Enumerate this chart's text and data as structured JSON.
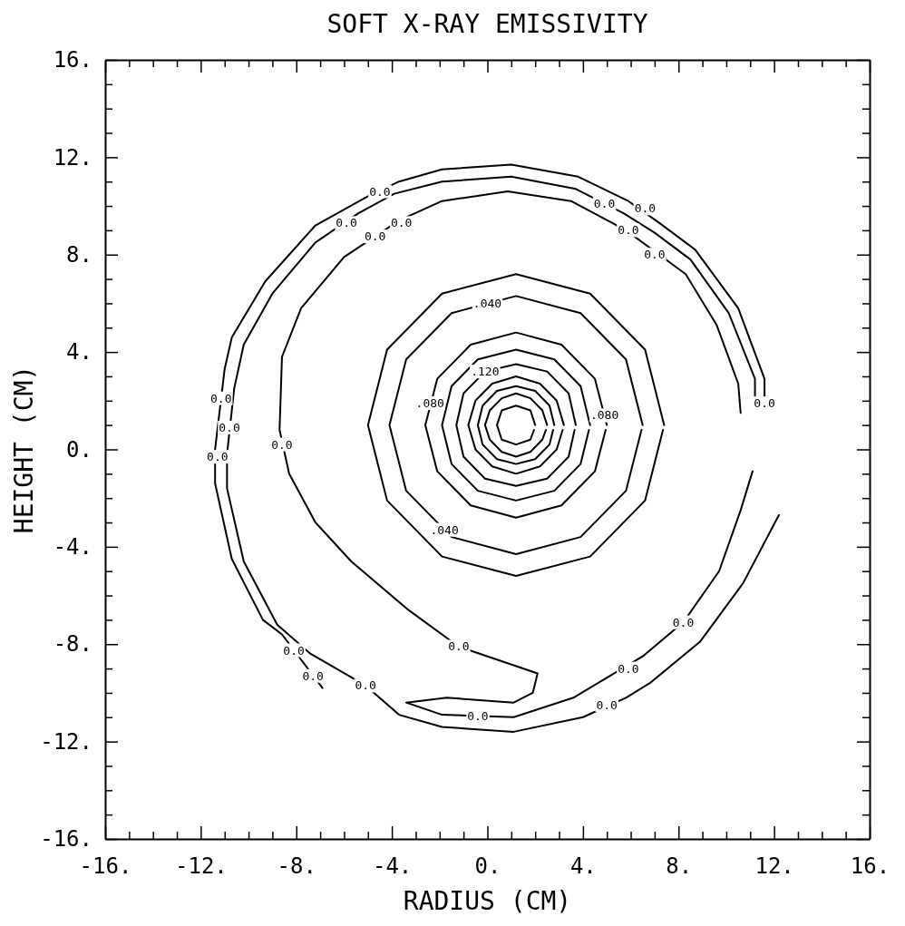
{
  "chart_data": {
    "type": "line",
    "title": "SOFT X-RAY EMISSIVITY",
    "xlabel": "RADIUS (CM)",
    "ylabel": "HEIGHT (CM)",
    "xlim": [
      -16,
      16
    ],
    "ylim": [
      -16,
      16
    ],
    "xticks": [
      {
        "value": -16,
        "label": "-16."
      },
      {
        "value": -15,
        "label": null
      },
      {
        "value": -14,
        "label": null
      },
      {
        "value": -13,
        "label": null
      },
      {
        "value": -12,
        "label": "-12."
      },
      {
        "value": -11,
        "label": null
      },
      {
        "value": -10,
        "label": null
      },
      {
        "value": -9,
        "label": null
      },
      {
        "value": -8,
        "label": "-8."
      },
      {
        "value": -7,
        "label": null
      },
      {
        "value": -6,
        "label": null
      },
      {
        "value": -5,
        "label": null
      },
      {
        "value": -4,
        "label": "-4."
      },
      {
        "value": -3,
        "label": null
      },
      {
        "value": -2,
        "label": null
      },
      {
        "value": -1,
        "label": null
      },
      {
        "value": 0,
        "label": "0."
      },
      {
        "value": 1,
        "label": null
      },
      {
        "value": 2,
        "label": null
      },
      {
        "value": 3,
        "label": null
      },
      {
        "value": 4,
        "label": "4."
      },
      {
        "value": 5,
        "label": null
      },
      {
        "value": 6,
        "label": null
      },
      {
        "value": 7,
        "label": null
      },
      {
        "value": 8,
        "label": "8."
      },
      {
        "value": 9,
        "label": null
      },
      {
        "value": 10,
        "label": null
      },
      {
        "value": 11,
        "label": null
      },
      {
        "value": 12,
        "label": "12."
      },
      {
        "value": 13,
        "label": null
      },
      {
        "value": 14,
        "label": null
      },
      {
        "value": 15,
        "label": null
      },
      {
        "value": 16,
        "label": "16."
      }
    ],
    "yticks": [
      {
        "value": -16,
        "label": "-16."
      },
      {
        "value": -15,
        "label": null
      },
      {
        "value": -14,
        "label": null
      },
      {
        "value": -13,
        "label": null
      },
      {
        "value": -12,
        "label": "-12."
      },
      {
        "value": -11,
        "label": null
      },
      {
        "value": -10,
        "label": null
      },
      {
        "value": -9,
        "label": null
      },
      {
        "value": -8,
        "label": "-8."
      },
      {
        "value": -7,
        "label": null
      },
      {
        "value": -6,
        "label": null
      },
      {
        "value": -5,
        "label": null
      },
      {
        "value": -4,
        "label": "-4."
      },
      {
        "value": -3,
        "label": null
      },
      {
        "value": -2,
        "label": null
      },
      {
        "value": -1,
        "label": null
      },
      {
        "value": 0,
        "label": "0."
      },
      {
        "value": 1,
        "label": null
      },
      {
        "value": 2,
        "label": null
      },
      {
        "value": 3,
        "label": null
      },
      {
        "value": 4,
        "label": "4."
      },
      {
        "value": 5,
        "label": null
      },
      {
        "value": 6,
        "label": null
      },
      {
        "value": 7,
        "label": null
      },
      {
        "value": 8,
        "label": "8."
      },
      {
        "value": 9,
        "label": null
      },
      {
        "value": 10,
        "label": null
      },
      {
        "value": 11,
        "label": null
      },
      {
        "value": 12,
        "label": "12."
      },
      {
        "value": 13,
        "label": null
      },
      {
        "value": 14,
        "label": null
      },
      {
        "value": 15,
        "label": null
      },
      {
        "value": 16,
        "label": "16."
      }
    ],
    "grid": false,
    "series": [
      {
        "color": "#000000",
        "x": [
          -6.9,
          -8.6,
          -9.4,
          -10.7,
          -11.4,
          -11.4,
          -11.0,
          -10.7,
          -9.3,
          -7.2,
          -5.0,
          -3.7,
          -1.9,
          1.0,
          3.8,
          5.9,
          7.2,
          8.7,
          10.5,
          11.6,
          11.6
        ],
        "values": [
          -9.8,
          -7.6,
          -7.0,
          -4.5,
          -1.4,
          0.0,
          3.3,
          4.6,
          6.9,
          9.2,
          10.4,
          11.0,
          11.5,
          11.7,
          11.2,
          10.2,
          9.3,
          8.2,
          5.8,
          2.9,
          1.9
        ]
      },
      {
        "color": "#000000",
        "x": [
          11.2,
          11.2,
          10.1,
          8.5,
          7.0,
          5.7,
          3.7,
          1.0,
          -1.9,
          -3.9,
          -5.4,
          -7.2,
          -9.0,
          -10.2,
          -10.6,
          -10.9,
          -10.9,
          -10.2,
          -8.8,
          -7.4,
          -5.1,
          -3.7,
          -1.9,
          1.1,
          4.0,
          5.8,
          6.8,
          8.9,
          10.7,
          12.2
        ],
        "values": [
          1.7,
          2.9,
          5.6,
          7.8,
          8.9,
          9.7,
          10.7,
          11.2,
          11.0,
          10.5,
          9.7,
          8.5,
          6.4,
          4.3,
          2.5,
          -0.2,
          -1.6,
          -4.6,
          -7.2,
          -8.4,
          -9.7,
          -10.9,
          -11.4,
          -11.6,
          -11.0,
          -10.2,
          -9.6,
          -7.9,
          -5.5,
          -2.7
        ]
      },
      {
        "color": "#000000",
        "x": [
          11.1,
          10.6,
          9.7,
          8.2,
          6.5,
          3.6,
          1.1,
          -1.9,
          -3.4,
          -1.7,
          1.1,
          1.9,
          2.1,
          -0.3,
          -1.2,
          -3.3,
          -5.7,
          -7.2,
          -8.3,
          -8.7,
          -8.6,
          -7.8,
          -6.0,
          -3.7,
          -1.9,
          0.85,
          3.5,
          5.8,
          8.3,
          9.6,
          10.5,
          10.6
        ],
        "values": [
          -0.9,
          -2.5,
          -5.0,
          -7.1,
          -8.5,
          -10.2,
          -11.0,
          -10.9,
          -10.4,
          -10.2,
          -10.4,
          -10.0,
          -9.2,
          -8.4,
          -8.1,
          -6.6,
          -4.6,
          -3.0,
          -1.0,
          0.8,
          3.8,
          5.8,
          7.9,
          9.4,
          10.2,
          10.6,
          10.2,
          9.0,
          7.2,
          5.1,
          2.7,
          1.5
        ]
      },
      {
        "color": "#000000",
        "x": [
          7.4,
          6.6,
          4.3,
          1.2,
          -1.9,
          -4.2,
          -5.0,
          -4.2,
          -1.9,
          1.2,
          4.3,
          6.6,
          7.35
        ],
        "values": [
          1.0,
          4.1,
          6.4,
          7.2,
          6.4,
          4.1,
          1.0,
          -2.1,
          -4.4,
          -5.2,
          -4.4,
          -2.1,
          0.8
        ]
      },
      {
        "color": "#000000",
        "x": [
          6.5,
          5.8,
          3.9,
          1.2,
          -1.5,
          -3.4,
          -4.1,
          -3.4,
          -1.5,
          1.2,
          3.9,
          5.8,
          6.45
        ],
        "values": [
          1.0,
          3.7,
          5.6,
          6.3,
          5.6,
          3.7,
          1.0,
          -1.7,
          -3.6,
          -4.3,
          -3.6,
          -1.7,
          0.8
        ]
      },
      {
        "color": "#000000",
        "x": [
          5.0,
          4.5,
          3.1,
          1.2,
          -0.7,
          -2.1,
          -2.6,
          -2.1,
          -0.7,
          1.2,
          3.1,
          4.5,
          4.95
        ],
        "values": [
          1.0,
          2.9,
          4.3,
          4.8,
          4.3,
          2.9,
          1.0,
          -0.9,
          -2.3,
          -2.8,
          -2.3,
          -0.9,
          0.8
        ]
      },
      {
        "color": "#000000",
        "x": [
          4.3,
          3.9,
          2.8,
          1.2,
          -0.4,
          -1.5,
          -1.9,
          -1.5,
          -0.4,
          1.2,
          2.8,
          3.9,
          4.25
        ],
        "values": [
          1.0,
          2.6,
          3.7,
          4.1,
          3.7,
          2.6,
          1.0,
          -0.6,
          -1.7,
          -2.1,
          -1.7,
          -0.6,
          0.8
        ]
      },
      {
        "color": "#000000",
        "x": [
          3.7,
          3.4,
          2.5,
          1.2,
          -0.1,
          -1.0,
          -1.3,
          -1.0,
          -0.1,
          1.2,
          2.5,
          3.4,
          3.65
        ],
        "values": [
          1.0,
          2.3,
          3.2,
          3.5,
          3.2,
          2.3,
          1.0,
          -0.3,
          -1.2,
          -1.5,
          -1.2,
          -0.3,
          0.8
        ]
      },
      {
        "color": "#000000",
        "x": [
          3.2,
          2.9,
          2.2,
          1.2,
          0.2,
          -0.5,
          -0.8,
          -0.5,
          0.2,
          1.2,
          2.2,
          2.9,
          3.15
        ],
        "values": [
          1.0,
          2.0,
          2.7,
          3.0,
          2.7,
          2.0,
          1.0,
          0.0,
          -0.7,
          -1.0,
          -0.7,
          0.0,
          0.8
        ]
      },
      {
        "color": "#000000",
        "x": [
          2.8,
          2.6,
          2.0,
          1.2,
          0.4,
          -0.2,
          -0.4,
          -0.2,
          0.4,
          1.2,
          2.0,
          2.6,
          2.75
        ],
        "values": [
          1.0,
          1.8,
          2.4,
          2.6,
          2.4,
          1.8,
          1.0,
          0.2,
          -0.4,
          -0.6,
          -0.4,
          0.2,
          0.8
        ]
      },
      {
        "color": "#000000",
        "x": [
          2.5,
          2.3,
          1.8,
          1.2,
          0.6,
          0.1,
          -0.1,
          0.1,
          0.6,
          1.2,
          1.8,
          2.3,
          2.45
        ],
        "values": [
          1.0,
          1.6,
          2.1,
          2.3,
          2.1,
          1.6,
          1.0,
          0.4,
          -0.1,
          -0.3,
          -0.1,
          0.4,
          0.8
        ]
      },
      {
        "color": "#000000",
        "x": [
          2.0,
          1.8,
          1.2,
          0.6,
          0.4,
          0.6,
          1.2,
          1.8,
          1.95
        ],
        "values": [
          1.0,
          1.6,
          1.8,
          1.6,
          1.0,
          0.4,
          0.2,
          0.4,
          0.8
        ]
      }
    ],
    "annotations": [
      {
        "text": "0.0",
        "x": -4.5,
        "y": 10.6
      },
      {
        "text": "0.0",
        "x": -5.9,
        "y": 9.3
      },
      {
        "text": "0.0",
        "x": -4.7,
        "y": 8.75
      },
      {
        "text": "0.0",
        "x": -3.6,
        "y": 9.3
      },
      {
        "text": "0.0",
        "x": 4.9,
        "y": 10.1
      },
      {
        "text": "0.0",
        "x": 6.6,
        "y": 9.9
      },
      {
        "text": "0.0",
        "x": 5.9,
        "y": 9.0
      },
      {
        "text": "0.0",
        "x": 7.0,
        "y": 8.0
      },
      {
        "text": "0.0",
        "x": 11.6,
        "y": 1.9
      },
      {
        "text": "0.0",
        "x": -11.15,
        "y": 2.1
      },
      {
        "text": "0.0",
        "x": -11.3,
        "y": -0.3
      },
      {
        "text": "0.0",
        "x": -10.8,
        "y": 0.9
      },
      {
        "text": "0.0",
        "x": -8.6,
        "y": 0.2
      },
      {
        "text": "0.0",
        "x": -8.1,
        "y": -8.25
      },
      {
        "text": "0.0",
        "x": -5.1,
        "y": -9.7
      },
      {
        "text": "0.0",
        "x": -7.3,
        "y": -9.3
      },
      {
        "text": "0.0",
        "x": -1.2,
        "y": -8.1
      },
      {
        "text": "0.0",
        "x": -0.4,
        "y": -10.95
      },
      {
        "text": "0.0",
        "x": 5.9,
        "y": -9.0
      },
      {
        "text": "0.0",
        "x": 8.2,
        "y": -7.1
      },
      {
        "text": "0.0",
        "x": 5.0,
        "y": -10.5
      },
      {
        "text": ".040",
        "x": 0.0,
        "y": 6.0
      },
      {
        "text": ".040",
        "x": -1.8,
        "y": -3.3
      },
      {
        "text": ".080",
        "x": -2.4,
        "y": 1.9
      },
      {
        "text": ".080",
        "x": 4.9,
        "y": 1.4
      },
      {
        "text": ".120",
        "x": -0.1,
        "y": 3.2
      }
    ]
  }
}
